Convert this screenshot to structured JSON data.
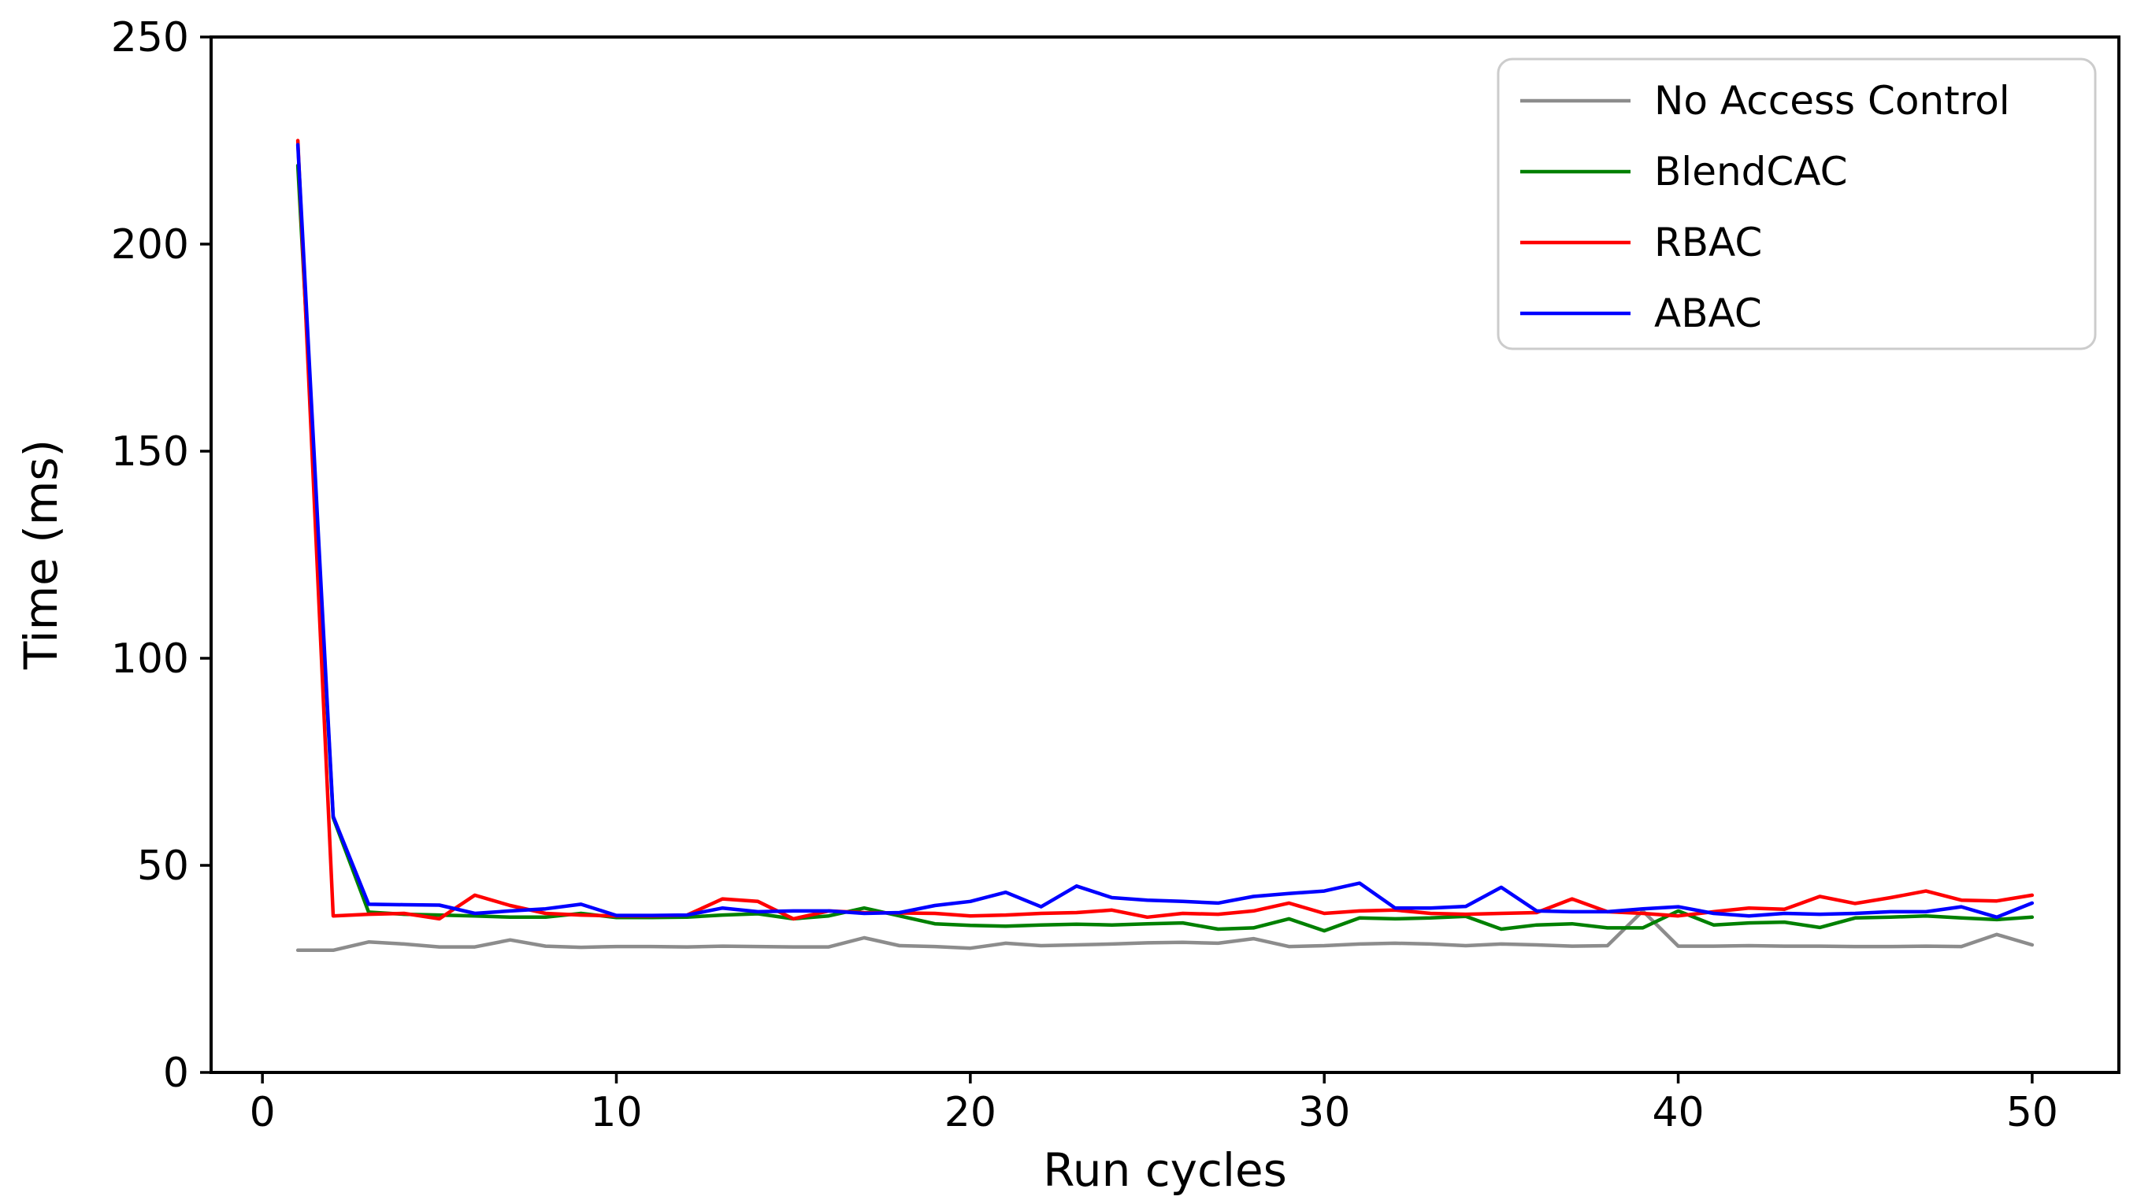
{
  "chart_data": {
    "type": "line",
    "title": "",
    "xlabel": "Run cycles",
    "ylabel": "Time (ms)",
    "xlim": [
      -1.45,
      52.45
    ],
    "ylim": [
      0,
      250
    ],
    "x_ticks": [
      0,
      10,
      20,
      30,
      40,
      50
    ],
    "y_ticks": [
      0,
      50,
      100,
      150,
      200,
      250
    ],
    "grid": false,
    "legend_position": "upper right",
    "background_color": "#ffffff",
    "legend_border_color": "#cccccc",
    "x": [
      1,
      2,
      3,
      4,
      5,
      6,
      7,
      8,
      9,
      10,
      11,
      12,
      13,
      14,
      15,
      16,
      17,
      18,
      19,
      20,
      21,
      22,
      23,
      24,
      25,
      26,
      27,
      28,
      29,
      30,
      31,
      32,
      33,
      34,
      35,
      36,
      37,
      38,
      39,
      40,
      41,
      42,
      43,
      44,
      45,
      46,
      47,
      48,
      49,
      50
    ],
    "series": [
      {
        "name": "No Access Control",
        "color": "#8c8c8c",
        "values": [
          29.5,
          29.5,
          31.5,
          31.0,
          30.3,
          30.3,
          32.0,
          30.5,
          30.2,
          30.4,
          30.4,
          30.3,
          30.5,
          30.4,
          30.3,
          30.3,
          32.5,
          30.6,
          30.4,
          30.0,
          31.2,
          30.6,
          30.8,
          31.0,
          31.3,
          31.4,
          31.2,
          32.3,
          30.4,
          30.6,
          31.0,
          31.2,
          31.0,
          30.6,
          31.0,
          30.8,
          30.5,
          30.6,
          39.0,
          30.5,
          30.5,
          30.6,
          30.5,
          30.5,
          30.4,
          30.4,
          30.5,
          30.4,
          33.3,
          30.8
        ]
      },
      {
        "name": "BlendCAC",
        "color": "#008000",
        "values": [
          219.0,
          61.5,
          38.7,
          38.2,
          38.0,
          37.8,
          37.5,
          37.5,
          38.4,
          37.4,
          37.4,
          37.5,
          38.0,
          38.3,
          37.1,
          37.8,
          39.7,
          37.8,
          35.9,
          35.5,
          35.3,
          35.6,
          35.8,
          35.6,
          35.9,
          36.1,
          34.6,
          34.9,
          37.1,
          34.2,
          37.3,
          37.1,
          37.3,
          37.7,
          34.6,
          35.6,
          35.9,
          34.9,
          34.9,
          39.0,
          35.6,
          36.1,
          36.3,
          35.0,
          37.3,
          37.5,
          37.8,
          37.3,
          36.9,
          37.5
        ]
      },
      {
        "name": "RBAC",
        "color": "#ff0000",
        "values": [
          225.0,
          37.8,
          38.2,
          38.4,
          37.1,
          42.8,
          40.3,
          38.4,
          38.0,
          37.8,
          37.8,
          38.0,
          41.9,
          41.3,
          37.1,
          39.0,
          38.6,
          38.5,
          38.4,
          37.8,
          38.0,
          38.4,
          38.6,
          39.2,
          37.5,
          38.4,
          38.2,
          39.0,
          40.9,
          38.4,
          39.0,
          39.2,
          38.4,
          38.2,
          38.4,
          38.6,
          41.9,
          38.8,
          38.4,
          37.8,
          38.8,
          39.7,
          39.4,
          42.5,
          40.8,
          42.2,
          43.8,
          41.6,
          41.4,
          42.8
        ]
      },
      {
        "name": "ABAC",
        "color": "#0000ff",
        "values": [
          224.0,
          61.8,
          40.6,
          40.5,
          40.4,
          38.4,
          39.0,
          39.5,
          40.6,
          37.9,
          37.9,
          38.0,
          39.7,
          38.8,
          39.0,
          39.0,
          38.4,
          38.6,
          40.3,
          41.3,
          43.5,
          40.0,
          45.0,
          42.2,
          41.6,
          41.3,
          40.9,
          42.5,
          43.2,
          43.8,
          45.7,
          39.7,
          39.7,
          40.1,
          44.7,
          39.0,
          38.8,
          38.8,
          39.5,
          40.0,
          38.4,
          37.8,
          38.4,
          38.2,
          38.4,
          38.8,
          38.8,
          40.0,
          37.5,
          40.9
        ]
      }
    ]
  }
}
